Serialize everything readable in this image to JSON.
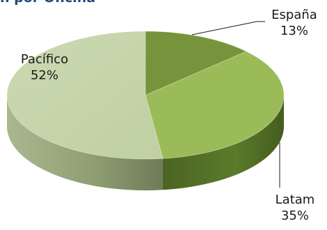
{
  "title": "n por Oficina",
  "chart_data": {
    "type": "pie",
    "style": "3d",
    "title": "",
    "legend": "none",
    "slices": [
      {
        "name": "España",
        "percent_label": "13%",
        "value": 13,
        "color": "#77933c"
      },
      {
        "name": "Latam",
        "percent_label": "35%",
        "value": 35,
        "color": "#9bbb59"
      },
      {
        "name": "Pacífico",
        "percent_label": "52%",
        "value": 52,
        "color": "#c4d5a8"
      }
    ]
  }
}
